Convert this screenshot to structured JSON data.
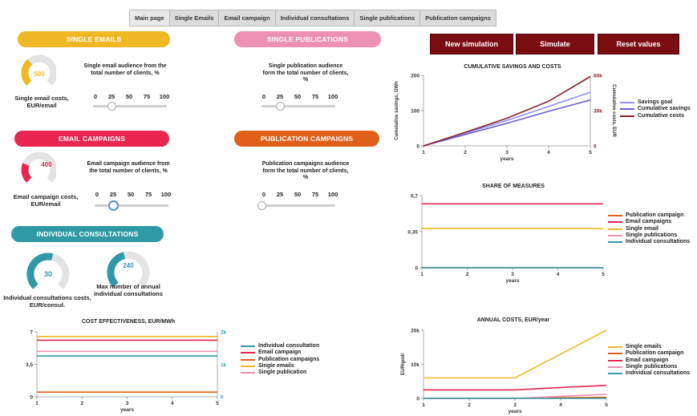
{
  "tabs": [
    "Main page",
    "Single Emails",
    "Email campaign",
    "Individual consultations",
    "Single publications",
    "Publication campaigns"
  ],
  "buttons": {
    "new_simulation": "New simulation",
    "simulate": "Simulate",
    "reset": "Reset values"
  },
  "sections": {
    "single_emails": {
      "title": "SINGLE EMAILS",
      "color": "#f1b826"
    },
    "single_publications": {
      "title": "SINGLE PUBLICATIONS",
      "color": "#ee8fb4"
    },
    "email_campaigns": {
      "title": "EMAIL CAMPAIGNS",
      "color": "#e8264f"
    },
    "publication_campaigns": {
      "title": "PUBLICATION CAMPAIGNS",
      "color": "#e0601a"
    },
    "individual_consultations": {
      "title": "INDIVIDUAL CONSULTATIONS",
      "color": "#2f9aa6"
    }
  },
  "gauges": {
    "single_email_cost": {
      "value": "500",
      "fraction": 0.35,
      "label": "Single email costs, EUR/email",
      "color": "#f1b826"
    },
    "email_campaign_cost": {
      "value": "400",
      "fraction": 0.25,
      "label": "Email campaign costs, EUR/email",
      "color": "#e8264f"
    },
    "consultation_cost": {
      "value": "30",
      "fraction": 0.55,
      "label": "Individual consultations costs, EUR/consul.",
      "color": "#2f9aa6"
    },
    "max_consultations": {
      "value": "240",
      "fraction": 0.45,
      "label": "Max number of annual individual consultations",
      "color": "#2f9aa6"
    }
  },
  "sliders": {
    "ticks": [
      "0",
      "25",
      "50",
      "75",
      "100"
    ],
    "single_email": {
      "caption": "Single email audience from the total number of clients, %",
      "value": 25
    },
    "single_publication": {
      "caption": "Single publication audience form the total number of clients, %",
      "value": 25
    },
    "email_campaign": {
      "caption": "Email campaign audience from the total number of clients, %",
      "value": 25
    },
    "publication_campaign": {
      "caption": "Publication campaigns audience form the total number of clients, %",
      "value": 0
    }
  },
  "chart_data": [
    {
      "id": "cumulative",
      "type": "line",
      "title": "CUMULATIVE SAVINGS AND COSTS",
      "xlabel": "years",
      "ylabel": "Cumulative savings, GWh",
      "y2label": "Cumulative costs, EUR",
      "x": [
        1,
        2,
        3,
        4,
        5
      ],
      "xticks": [
        "1",
        "2",
        "3",
        "4",
        "5"
      ],
      "ylim": [
        0,
        200
      ],
      "yticks": [
        "0",
        "100",
        "200"
      ],
      "y2lim": [
        0,
        60000
      ],
      "y2ticks": [
        "0",
        "30k",
        "60k"
      ],
      "series": [
        {
          "name": "Savings goal",
          "color": "#8f8ff0",
          "axis": "left",
          "values": [
            0,
            36,
            72,
            112,
            152
          ]
        },
        {
          "name": "Cumulative savings",
          "color": "#6a5fd0",
          "axis": "left",
          "values": [
            0,
            32,
            64,
            98,
            130
          ]
        },
        {
          "name": "Cumulative costs",
          "color": "#8a1f2b",
          "axis": "right",
          "values": [
            0,
            11500,
            23500,
            38000,
            59000
          ]
        }
      ]
    },
    {
      "id": "share",
      "type": "line",
      "title": "SHARE OF MEASURES",
      "xlabel": "years",
      "x": [
        1,
        2,
        3,
        4,
        5
      ],
      "xticks": [
        "1",
        "2",
        "3",
        "4",
        "5"
      ],
      "ylim": [
        0,
        0.7
      ],
      "yticks": [
        "0",
        "0,35",
        "0,7"
      ],
      "series": [
        {
          "name": "Publication campaign",
          "color": "#e0601a",
          "values": [
            0,
            0,
            0,
            0,
            0
          ]
        },
        {
          "name": "Email campaigns",
          "color": "#e8264f",
          "values": [
            0.62,
            0.62,
            0.62,
            0.62,
            0.62
          ]
        },
        {
          "name": "Single email",
          "color": "#f1b826",
          "values": [
            0.38,
            0.38,
            0.38,
            0.38,
            0.38
          ]
        },
        {
          "name": "Single publications",
          "color": "#ee8fb4",
          "values": [
            0,
            0,
            0,
            0,
            0
          ]
        },
        {
          "name": "Individual consultations",
          "color": "#2f9aa6",
          "values": [
            0,
            0,
            0,
            0,
            0
          ]
        }
      ]
    },
    {
      "id": "annual_costs",
      "type": "line",
      "title": "ANNUAL COSTS, EUR/year",
      "xlabel": "years",
      "ylabel": "EUR/godi",
      "x": [
        1,
        2,
        3,
        4,
        5
      ],
      "xticks": [
        "1",
        "2",
        "3",
        "4",
        "5"
      ],
      "ylim": [
        0,
        20000
      ],
      "yticks": [
        "0",
        "10k",
        "20k"
      ],
      "series": [
        {
          "name": "Single emails",
          "color": "#f1b826",
          "values": [
            6000,
            6000,
            6000,
            13000,
            20000
          ]
        },
        {
          "name": "Publication campaign",
          "color": "#e0601a",
          "values": [
            0,
            0,
            0,
            200,
            300
          ]
        },
        {
          "name": "Email campaign",
          "color": "#e8264f",
          "values": [
            2500,
            2500,
            2500,
            3200,
            3800
          ]
        },
        {
          "name": "Single publications",
          "color": "#ee8fb4",
          "values": [
            0,
            0,
            0,
            600,
            1200
          ]
        },
        {
          "name": "Individual consultations",
          "color": "#2f9aa6",
          "values": [
            0,
            0,
            0,
            0,
            0
          ]
        }
      ]
    },
    {
      "id": "cost_effectiveness",
      "type": "line",
      "title": "COST EFFECTIVENESS, EUR/MWh",
      "xlabel": "years",
      "x": [
        1,
        2,
        3,
        4,
        5
      ],
      "xticks": [
        "1",
        "2",
        "3",
        "4",
        "5"
      ],
      "ylim": [
        0,
        7
      ],
      "yticks": [
        "0",
        "3,5",
        "7"
      ],
      "y2lim": [
        0,
        2000
      ],
      "y2ticks": [
        "0",
        "1k",
        "2k"
      ],
      "series": [
        {
          "name": "Individual consultation",
          "color": "#2f9aa6",
          "axis": "left",
          "values": [
            4.4,
            4.4,
            4.4,
            4.4,
            4.4
          ]
        },
        {
          "name": "Email campaign",
          "color": "#e8264f",
          "axis": "left",
          "values": [
            6.1,
            6.1,
            6.1,
            6.1,
            6.1
          ]
        },
        {
          "name": "Publication campaigns",
          "color": "#e0601a",
          "axis": "left",
          "values": [
            0.5,
            0.5,
            0.5,
            0.5,
            0.5
          ]
        },
        {
          "name": "Single emails",
          "color": "#f1b826",
          "axis": "left",
          "values": [
            6.5,
            6.5,
            6.5,
            6.5,
            6.5
          ]
        },
        {
          "name": "Single publication",
          "color": "#ee8fb4",
          "axis": "left",
          "values": [
            4.9,
            4.9,
            4.9,
            4.9,
            4.9
          ]
        }
      ]
    }
  ]
}
